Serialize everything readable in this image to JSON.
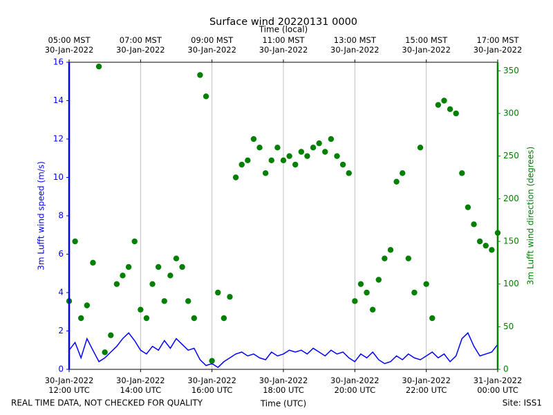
{
  "chart_data": {
    "type": "line",
    "title": "Surface wind 20220131 0000",
    "xlabel": "Time (UTC)",
    "xlabel_top": "Time (local)",
    "ylabel": "3m Lufft wind speed (m/s)",
    "y2label": "3m Lufft wind direction (degrees)",
    "footer_left": "REAL TIME DATA, NOT CHECKED FOR QUALITY",
    "footer_right": "Site: ISS1",
    "grid": "x",
    "xlim": [
      "2022-01-30T12:00",
      "2022-01-31T00:00"
    ],
    "xticks": [
      {
        "value": "2022-01-30T12:00",
        "label": "30-Jan-2022\n12:00 UTC"
      },
      {
        "value": "2022-01-30T14:00",
        "label": "30-Jan-2022\n14:00 UTC"
      },
      {
        "value": "2022-01-30T16:00",
        "label": "30-Jan-2022\n16:00 UTC"
      },
      {
        "value": "2022-01-30T18:00",
        "label": "30-Jan-2022\n18:00 UTC"
      },
      {
        "value": "2022-01-30T20:00",
        "label": "30-Jan-2022\n20:00 UTC"
      },
      {
        "value": "2022-01-30T22:00",
        "label": "30-Jan-2022\n22:00 UTC"
      },
      {
        "value": "2022-01-31T00:00",
        "label": "31-Jan-2022\n00:00 UTC"
      }
    ],
    "xticks_top": [
      {
        "value": "2022-01-30T12:00",
        "label": "05:00 MST\n30-Jan-2022"
      },
      {
        "value": "2022-01-30T14:00",
        "label": "07:00 MST\n30-Jan-2022"
      },
      {
        "value": "2022-01-30T16:00",
        "label": "09:00 MST\n30-Jan-2022"
      },
      {
        "value": "2022-01-30T18:00",
        "label": "11:00 MST\n30-Jan-2022"
      },
      {
        "value": "2022-01-30T20:00",
        "label": "13:00 MST\n30-Jan-2022"
      },
      {
        "value": "2022-01-30T22:00",
        "label": "15:00 MST\n30-Jan-2022"
      },
      {
        "value": "2022-01-31T00:00",
        "label": "17:00 MST\n30-Jan-2022"
      }
    ],
    "ylim": [
      0,
      16
    ],
    "yticks": [
      0,
      2,
      4,
      6,
      8,
      10,
      12,
      14,
      16
    ],
    "ycolor": "#0000ff",
    "y2lim": [
      0,
      360
    ],
    "y2ticks": [
      0,
      50,
      100,
      150,
      200,
      250,
      300,
      350
    ],
    "y2color": "#008000",
    "x": [
      "2022-01-30T12:00",
      "2022-01-30T12:10",
      "2022-01-30T12:20",
      "2022-01-30T12:30",
      "2022-01-30T12:40",
      "2022-01-30T12:50",
      "2022-01-30T13:00",
      "2022-01-30T13:10",
      "2022-01-30T13:20",
      "2022-01-30T13:30",
      "2022-01-30T13:40",
      "2022-01-30T13:50",
      "2022-01-30T14:00",
      "2022-01-30T14:10",
      "2022-01-30T14:20",
      "2022-01-30T14:30",
      "2022-01-30T14:40",
      "2022-01-30T14:50",
      "2022-01-30T15:00",
      "2022-01-30T15:10",
      "2022-01-30T15:20",
      "2022-01-30T15:30",
      "2022-01-30T15:40",
      "2022-01-30T15:50",
      "2022-01-30T16:00",
      "2022-01-30T16:10",
      "2022-01-30T16:20",
      "2022-01-30T16:30",
      "2022-01-30T16:40",
      "2022-01-30T16:50",
      "2022-01-30T17:00",
      "2022-01-30T17:10",
      "2022-01-30T17:20",
      "2022-01-30T17:30",
      "2022-01-30T17:40",
      "2022-01-30T17:50",
      "2022-01-30T18:00",
      "2022-01-30T18:10",
      "2022-01-30T18:20",
      "2022-01-30T18:30",
      "2022-01-30T18:40",
      "2022-01-30T18:50",
      "2022-01-30T19:00",
      "2022-01-30T19:10",
      "2022-01-30T19:20",
      "2022-01-30T19:30",
      "2022-01-30T19:40",
      "2022-01-30T19:50",
      "2022-01-30T20:00",
      "2022-01-30T20:10",
      "2022-01-30T20:20",
      "2022-01-30T20:30",
      "2022-01-30T20:40",
      "2022-01-30T20:50",
      "2022-01-30T21:00",
      "2022-01-30T21:10",
      "2022-01-30T21:20",
      "2022-01-30T21:30",
      "2022-01-30T21:40",
      "2022-01-30T21:50",
      "2022-01-30T22:00",
      "2022-01-30T22:10",
      "2022-01-30T22:20",
      "2022-01-30T22:30",
      "2022-01-30T22:40",
      "2022-01-30T22:50",
      "2022-01-30T23:00",
      "2022-01-30T23:10",
      "2022-01-30T23:20",
      "2022-01-30T23:30",
      "2022-01-30T23:40",
      "2022-01-30T23:50",
      "2022-01-31T00:00"
    ],
    "series": [
      {
        "type": "line",
        "axis": "y",
        "color": "#0000ff",
        "values": [
          1.0,
          1.4,
          0.6,
          1.6,
          1.0,
          0.4,
          0.6,
          0.9,
          1.2,
          1.6,
          1.9,
          1.5,
          1.0,
          0.8,
          1.2,
          1.0,
          1.5,
          1.1,
          1.6,
          1.3,
          1.0,
          1.1,
          0.5,
          0.2,
          0.3,
          0.1,
          0.4,
          0.6,
          0.8,
          0.9,
          0.7,
          0.8,
          0.6,
          0.5,
          0.9,
          0.7,
          0.8,
          1.0,
          0.9,
          1.0,
          0.8,
          1.1,
          0.9,
          0.7,
          1.0,
          0.8,
          0.9,
          0.6,
          0.4,
          0.8,
          0.6,
          0.9,
          0.5,
          0.3,
          0.4,
          0.7,
          0.5,
          0.8,
          0.6,
          0.5,
          0.7,
          0.9,
          0.6,
          0.8,
          0.4,
          0.7,
          1.6,
          1.9,
          1.2,
          0.7,
          0.8,
          0.9,
          1.3
        ]
      },
      {
        "type": "scatter",
        "axis": "y2",
        "color": "#008000",
        "values": [
          80,
          150,
          60,
          75,
          125,
          355,
          20,
          40,
          100,
          110,
          120,
          150,
          70,
          60,
          100,
          120,
          80,
          110,
          130,
          120,
          80,
          60,
          345,
          320,
          10,
          90,
          60,
          85,
          225,
          240,
          245,
          270,
          260,
          230,
          245,
          260,
          245,
          250,
          240,
          255,
          250,
          260,
          265,
          255,
          270,
          250,
          240,
          230,
          80,
          100,
          90,
          70,
          105,
          130,
          140,
          220,
          230,
          130,
          90,
          260,
          100,
          60,
          310,
          315,
          305,
          300,
          230,
          190,
          170,
          150,
          145,
          140,
          160
        ]
      }
    ]
  }
}
